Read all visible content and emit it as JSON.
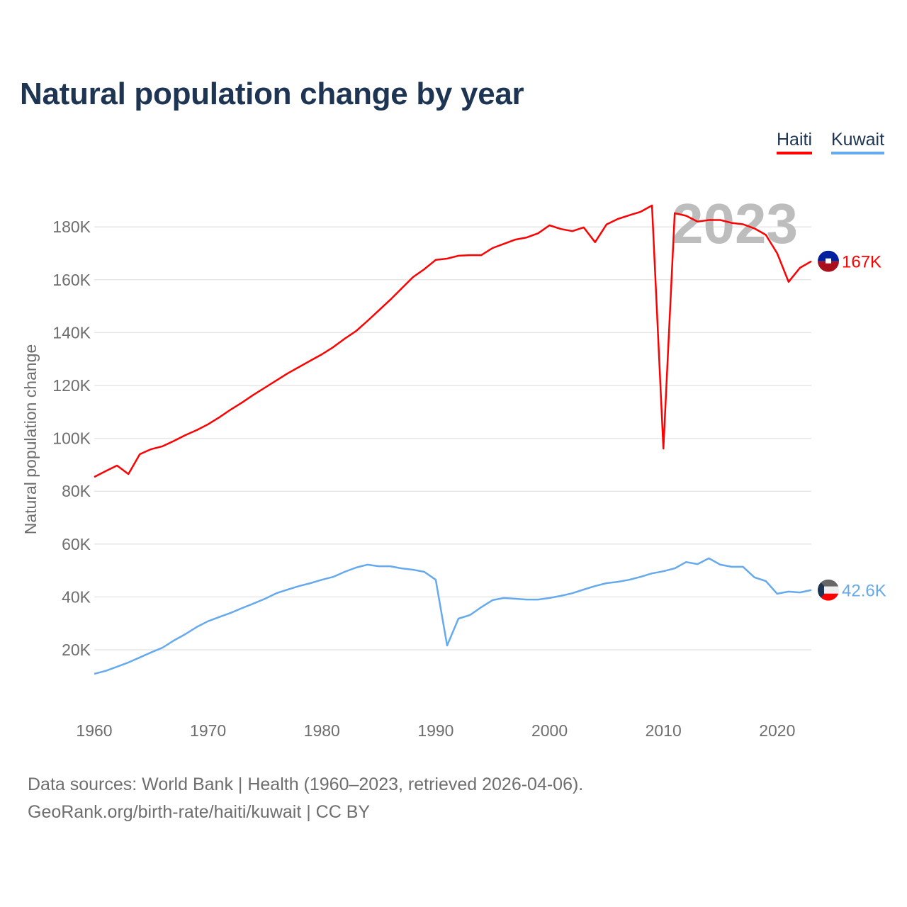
{
  "title": "Natural population change by year",
  "legend": [
    {
      "label": "Haiti"
    },
    {
      "label": "Kuwait"
    }
  ],
  "footer": {
    "line1": "Data sources: World Bank | Health (1960–2023, retrieved 2026-04-06).",
    "line2": "GeoRank.org/birth-rate/haiti/kuwait | CC BY"
  },
  "chart_data": {
    "type": "line",
    "title": "Natural population change by year",
    "xlabel": "",
    "ylabel": "Natural population change",
    "year_watermark": "2023",
    "xlim": [
      1960,
      2023
    ],
    "ylim": [
      0,
      190000
    ],
    "x_ticks": [
      1960,
      1970,
      1980,
      1990,
      2000,
      2010,
      2020
    ],
    "x_tick_labels": [
      "1960",
      "1970",
      "1980",
      "1990",
      "2000",
      "2010",
      "2020"
    ],
    "y_ticks": [
      20000,
      40000,
      60000,
      80000,
      100000,
      120000,
      140000,
      160000,
      180000
    ],
    "y_tick_labels": [
      "20K",
      "40K",
      "60K",
      "80K",
      "100K",
      "120K",
      "140K",
      "160K",
      "180K"
    ],
    "grid": true,
    "legend_position": "top-right",
    "x": [
      1960,
      1961,
      1962,
      1963,
      1964,
      1965,
      1966,
      1967,
      1968,
      1969,
      1970,
      1971,
      1972,
      1973,
      1974,
      1975,
      1976,
      1977,
      1978,
      1979,
      1980,
      1981,
      1982,
      1983,
      1984,
      1985,
      1986,
      1987,
      1988,
      1989,
      1990,
      1991,
      1992,
      1993,
      1994,
      1995,
      1996,
      1997,
      1998,
      1999,
      2000,
      2001,
      2002,
      2003,
      2004,
      2005,
      2006,
      2007,
      2008,
      2009,
      2010,
      2011,
      2012,
      2013,
      2014,
      2015,
      2016,
      2017,
      2018,
      2019,
      2020,
      2021,
      2022,
      2023
    ],
    "series": [
      {
        "name": "Haiti",
        "color": "#ff0000",
        "end_label": "167K",
        "flag": "haiti-flag",
        "values": [
          85400,
          87600,
          89700,
          86500,
          94000,
          95900,
          97000,
          99000,
          101200,
          103100,
          105300,
          108000,
          110900,
          113600,
          116500,
          119200,
          121900,
          124600,
          127000,
          129400,
          131800,
          134500,
          137700,
          140600,
          144400,
          148400,
          152400,
          156700,
          161000,
          164000,
          167500,
          168000,
          169100,
          169300,
          169300,
          172000,
          173600,
          175200,
          176000,
          177600,
          180600,
          179200,
          178400,
          179800,
          174200,
          180900,
          183000,
          184400,
          185700,
          188100,
          96100,
          185200,
          184200,
          182000,
          182600,
          182600,
          181500,
          181000,
          179400,
          177000,
          170000,
          159200,
          164500,
          167000
        ]
      },
      {
        "name": "Kuwait",
        "color": "#66aaee",
        "end_label": "42.6K",
        "flag": "kuwait-flag",
        "values": [
          10900,
          12000,
          13600,
          15200,
          17100,
          19000,
          20800,
          23500,
          25900,
          28600,
          30800,
          32400,
          34000,
          35800,
          37500,
          39300,
          41400,
          42800,
          44100,
          45200,
          46500,
          47600,
          49500,
          51100,
          52200,
          51600,
          51600,
          50800,
          50300,
          49500,
          46500,
          21600,
          31800,
          33100,
          36100,
          38800,
          39600,
          39300,
          39000,
          39000,
          39600,
          40400,
          41400,
          42800,
          44100,
          45200,
          45700,
          46500,
          47600,
          48900,
          49700,
          50800,
          53200,
          52400,
          54600,
          52200,
          51400,
          51400,
          47400,
          46000,
          41200,
          42000,
          41700,
          42600
        ]
      }
    ]
  }
}
